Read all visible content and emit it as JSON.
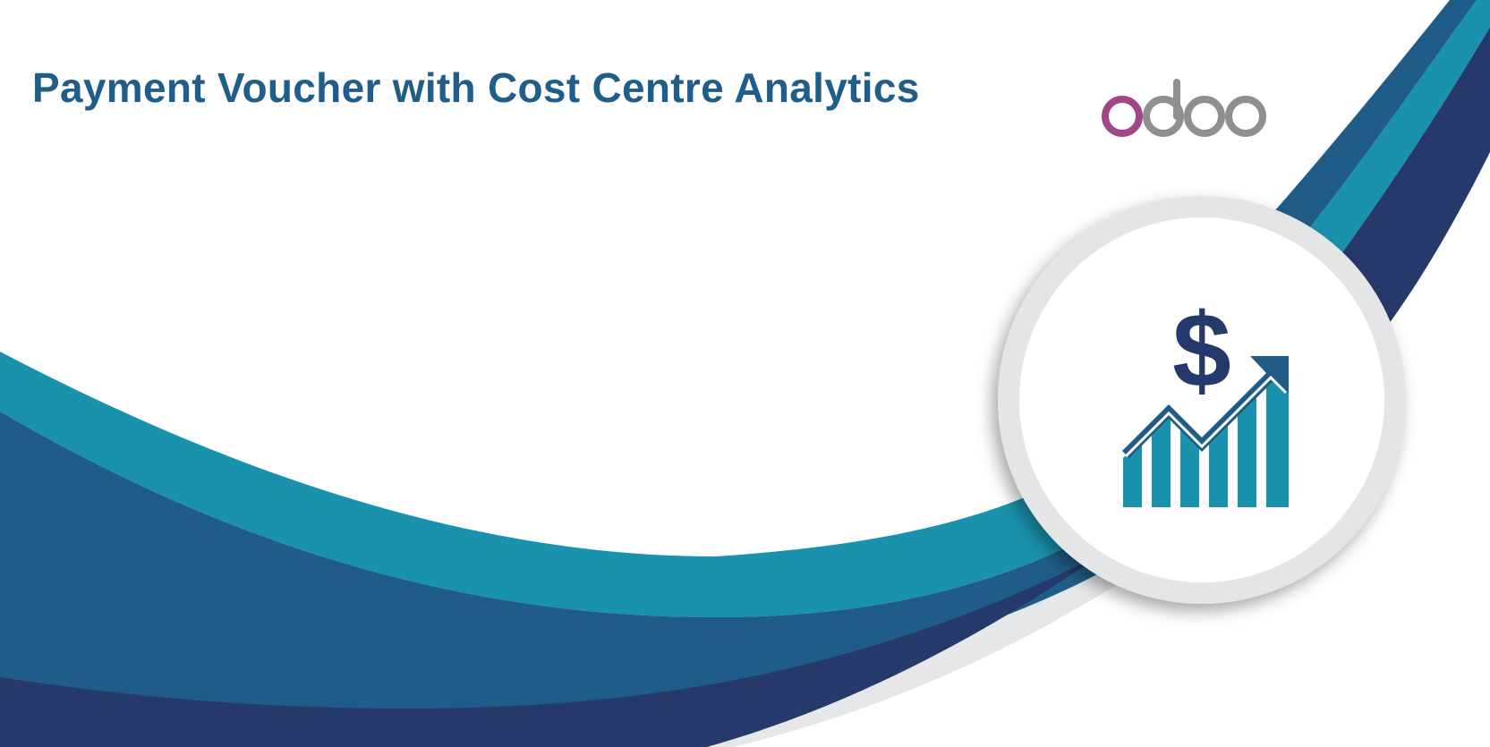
{
  "banner": {
    "title": "Payment Voucher with Cost Centre Analytics",
    "logo": {
      "icon": "odoo-logo",
      "text": "odoo",
      "colors": {
        "first_letter": "#A24689",
        "letters": "#8F8F8F"
      }
    },
    "illustration": {
      "icon": "dollar-growth-chart-icon",
      "symbol": "$",
      "bar_count": 6
    },
    "colors": {
      "title": "#1F5D8B",
      "teal": "#1A91AD",
      "blue": "#1F5D88",
      "navy": "#26396B",
      "circle_ring": "#E4E5E7",
      "background": "#FFFFFF"
    }
  }
}
